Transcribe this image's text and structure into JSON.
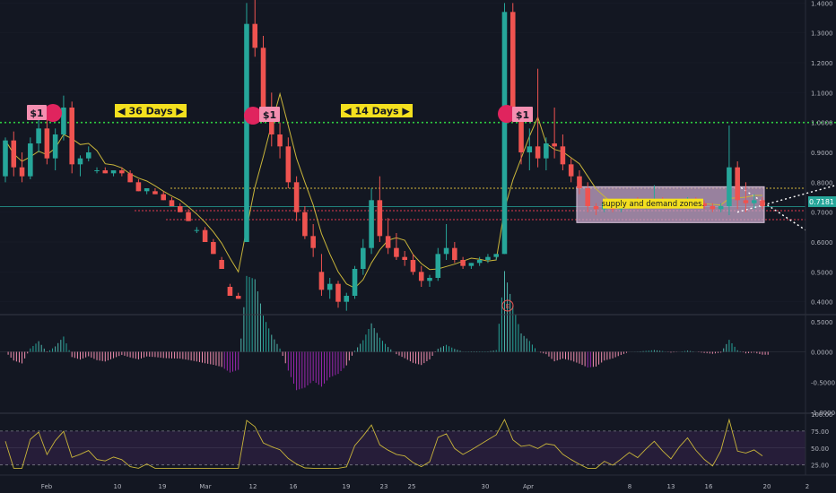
{
  "colors": {
    "background": "#131722",
    "up": "#26a69a",
    "down": "#ef5350",
    "ma": "#c9b53a",
    "grid": "#2a2e39",
    "axis_text": "#b2b5be",
    "green_level": "#2ecc40",
    "yellow_level": "#d4b73a",
    "teal_level": "#26a69a",
    "red_level": "#e0394f",
    "annotation_box": "#f4e01e",
    "zone_fill": "#c6a6c8",
    "rsi_band": "#2a1f3d",
    "osc_purple": "#9c27b0"
  },
  "annotations": {
    "label_36_days": "◀ 36 Days ▶",
    "label_14_days": "◀ 14 Days ▶",
    "dollar_labels": [
      "$1",
      "$1",
      "$1"
    ],
    "zone_label": "supply and demand zones.",
    "current_price_tag": "0.7181",
    "earnings_marker": "E"
  },
  "chart_data": [
    {
      "type": "candlestick",
      "panel": "price",
      "date_axis": [
        "Feb",
        "10",
        "19",
        "Mar",
        "12",
        "16",
        "19",
        "23",
        "25",
        "30",
        "Apr",
        "8",
        "13",
        "16",
        "20",
        "2"
      ],
      "y_ticks": [
        "1.4000",
        "1.3000",
        "1.2000",
        "1.1000",
        "1.0000",
        "0.9000",
        "0.8000",
        "0.7000",
        "0.6000",
        "0.5000",
        "0.4000"
      ],
      "ylim": [
        0.36,
        1.41
      ],
      "levels": {
        "resistance": 1.0,
        "upper_zone": 0.78,
        "current": 0.7181,
        "lower_red": 0.705,
        "lower_red_2": 0.675
      },
      "ohlc": [
        [
          0.82,
          0.95,
          0.8,
          0.94
        ],
        [
          0.94,
          0.97,
          0.82,
          0.85
        ],
        [
          0.85,
          0.9,
          0.8,
          0.82
        ],
        [
          0.82,
          0.95,
          0.81,
          0.93
        ],
        [
          0.93,
          1.02,
          0.9,
          0.98
        ],
        [
          0.98,
          1.04,
          0.86,
          0.88
        ],
        [
          0.88,
          0.98,
          0.84,
          0.96
        ],
        [
          0.96,
          1.09,
          0.94,
          1.05
        ],
        [
          1.05,
          1.07,
          0.83,
          0.86
        ],
        [
          0.86,
          0.89,
          0.82,
          0.88
        ],
        [
          0.88,
          0.92,
          0.87,
          0.9
        ],
        [
          0.84,
          0.85,
          0.83,
          0.84
        ],
        [
          0.84,
          0.85,
          0.83,
          0.83
        ],
        [
          0.83,
          0.84,
          0.82,
          0.84
        ],
        [
          0.84,
          0.85,
          0.82,
          0.83
        ],
        [
          0.83,
          0.84,
          0.8,
          0.8
        ],
        [
          0.8,
          0.81,
          0.77,
          0.77
        ],
        [
          0.77,
          0.78,
          0.76,
          0.78
        ],
        [
          0.77,
          0.78,
          0.76,
          0.76
        ],
        [
          0.76,
          0.77,
          0.74,
          0.74
        ],
        [
          0.74,
          0.75,
          0.72,
          0.72
        ],
        [
          0.72,
          0.73,
          0.7,
          0.7
        ],
        [
          0.7,
          0.71,
          0.67,
          0.67
        ],
        [
          0.64,
          0.65,
          0.63,
          0.64
        ],
        [
          0.64,
          0.65,
          0.6,
          0.6
        ],
        [
          0.6,
          0.61,
          0.56,
          0.56
        ],
        [
          0.54,
          0.55,
          0.51,
          0.51
        ],
        [
          0.45,
          0.46,
          0.42,
          0.42
        ],
        [
          0.42,
          0.43,
          0.41,
          0.41
        ],
        [
          0.6,
          1.4,
          0.6,
          1.33
        ],
        [
          1.33,
          1.41,
          1.22,
          1.25
        ],
        [
          1.25,
          1.29,
          1.0,
          1.02
        ],
        [
          1.02,
          1.1,
          0.92,
          0.96
        ],
        [
          0.96,
          1.0,
          0.88,
          0.92
        ],
        [
          0.92,
          0.95,
          0.78,
          0.8
        ],
        [
          0.8,
          0.82,
          0.67,
          0.7
        ],
        [
          0.7,
          0.72,
          0.61,
          0.62
        ],
        [
          0.62,
          0.66,
          0.55,
          0.58
        ],
        [
          0.5,
          0.56,
          0.42,
          0.44
        ],
        [
          0.44,
          0.48,
          0.41,
          0.46
        ],
        [
          0.46,
          0.47,
          0.38,
          0.4
        ],
        [
          0.4,
          0.43,
          0.37,
          0.42
        ],
        [
          0.42,
          0.52,
          0.41,
          0.51
        ],
        [
          0.51,
          0.61,
          0.49,
          0.58
        ],
        [
          0.58,
          0.78,
          0.56,
          0.74
        ],
        [
          0.74,
          0.82,
          0.6,
          0.62
        ],
        [
          0.62,
          0.68,
          0.56,
          0.58
        ],
        [
          0.58,
          0.63,
          0.54,
          0.55
        ],
        [
          0.55,
          0.57,
          0.52,
          0.54
        ],
        [
          0.54,
          0.56,
          0.49,
          0.5
        ],
        [
          0.5,
          0.52,
          0.45,
          0.47
        ],
        [
          0.47,
          0.49,
          0.45,
          0.48
        ],
        [
          0.48,
          0.58,
          0.47,
          0.56
        ],
        [
          0.56,
          0.66,
          0.54,
          0.58
        ],
        [
          0.58,
          0.6,
          0.53,
          0.54
        ],
        [
          0.54,
          0.55,
          0.51,
          0.52
        ],
        [
          0.52,
          0.53,
          0.51,
          0.53
        ],
        [
          0.53,
          0.55,
          0.52,
          0.54
        ],
        [
          0.54,
          0.56,
          0.53,
          0.55
        ],
        [
          0.55,
          0.56,
          0.54,
          0.56
        ],
        [
          0.56,
          1.4,
          0.56,
          1.37
        ],
        [
          1.37,
          1.4,
          1.0,
          1.02
        ],
        [
          1.02,
          1.05,
          0.86,
          0.9
        ],
        [
          0.9,
          0.98,
          0.84,
          0.92
        ],
        [
          0.92,
          1.18,
          0.85,
          0.88
        ],
        [
          0.88,
          0.95,
          0.84,
          0.93
        ],
        [
          0.93,
          1.05,
          0.88,
          0.92
        ],
        [
          0.92,
          0.96,
          0.84,
          0.86
        ],
        [
          0.86,
          0.88,
          0.8,
          0.82
        ],
        [
          0.82,
          0.84,
          0.76,
          0.78
        ],
        [
          0.78,
          0.8,
          0.7,
          0.72
        ],
        [
          0.72,
          0.73,
          0.69,
          0.71
        ],
        [
          0.71,
          0.74,
          0.7,
          0.73
        ],
        [
          0.73,
          0.74,
          0.7,
          0.71
        ],
        [
          0.71,
          0.73,
          0.7,
          0.72
        ],
        [
          0.72,
          0.74,
          0.71,
          0.73
        ],
        [
          0.73,
          0.75,
          0.71,
          0.72
        ],
        [
          0.72,
          0.74,
          0.71,
          0.73
        ],
        [
          0.73,
          0.79,
          0.72,
          0.74
        ],
        [
          0.74,
          0.75,
          0.72,
          0.73
        ],
        [
          0.73,
          0.74,
          0.71,
          0.72
        ],
        [
          0.72,
          0.74,
          0.71,
          0.73
        ],
        [
          0.73,
          0.75,
          0.72,
          0.74
        ],
        [
          0.74,
          0.75,
          0.72,
          0.73
        ],
        [
          0.73,
          0.74,
          0.71,
          0.72
        ],
        [
          0.72,
          0.73,
          0.7,
          0.71
        ],
        [
          0.71,
          0.73,
          0.7,
          0.72
        ],
        [
          0.72,
          0.99,
          0.69,
          0.85
        ],
        [
          0.85,
          0.87,
          0.71,
          0.74
        ],
        [
          0.74,
          0.8,
          0.7,
          0.73
        ],
        [
          0.73,
          0.76,
          0.71,
          0.74
        ],
        [
          0.74,
          0.75,
          0.71,
          0.72
        ]
      ]
    },
    {
      "type": "histogram",
      "panel": "oscillator",
      "y_ticks": [
        "0.5000",
        "0.0000",
        "-0.5000",
        "-1.0000"
      ],
      "ylim": [
        -1.0,
        0.6
      ]
    },
    {
      "type": "line",
      "panel": "rsi",
      "y_ticks": [
        "100.00",
        "75.00",
        "50.00",
        "25.00"
      ],
      "ylim": [
        10,
        100
      ],
      "band": [
        25,
        75
      ]
    }
  ]
}
